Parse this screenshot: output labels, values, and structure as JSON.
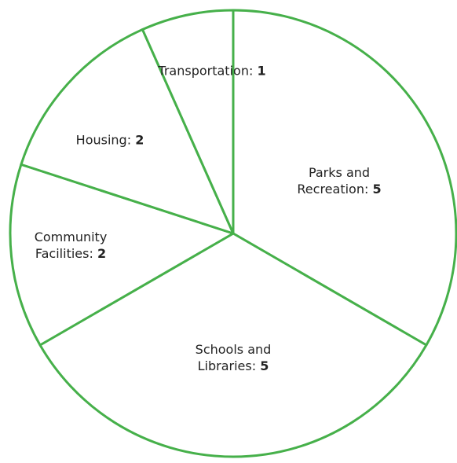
{
  "chart_data": {
    "type": "pie",
    "categories": [
      "Parks and Recreation:",
      "Schools and Libraries:",
      "Community Facilities:",
      "Housing:",
      "Transportation:"
    ],
    "values": [
      5,
      5,
      2,
      2,
      1
    ],
    "color": "#46b04a"
  }
}
